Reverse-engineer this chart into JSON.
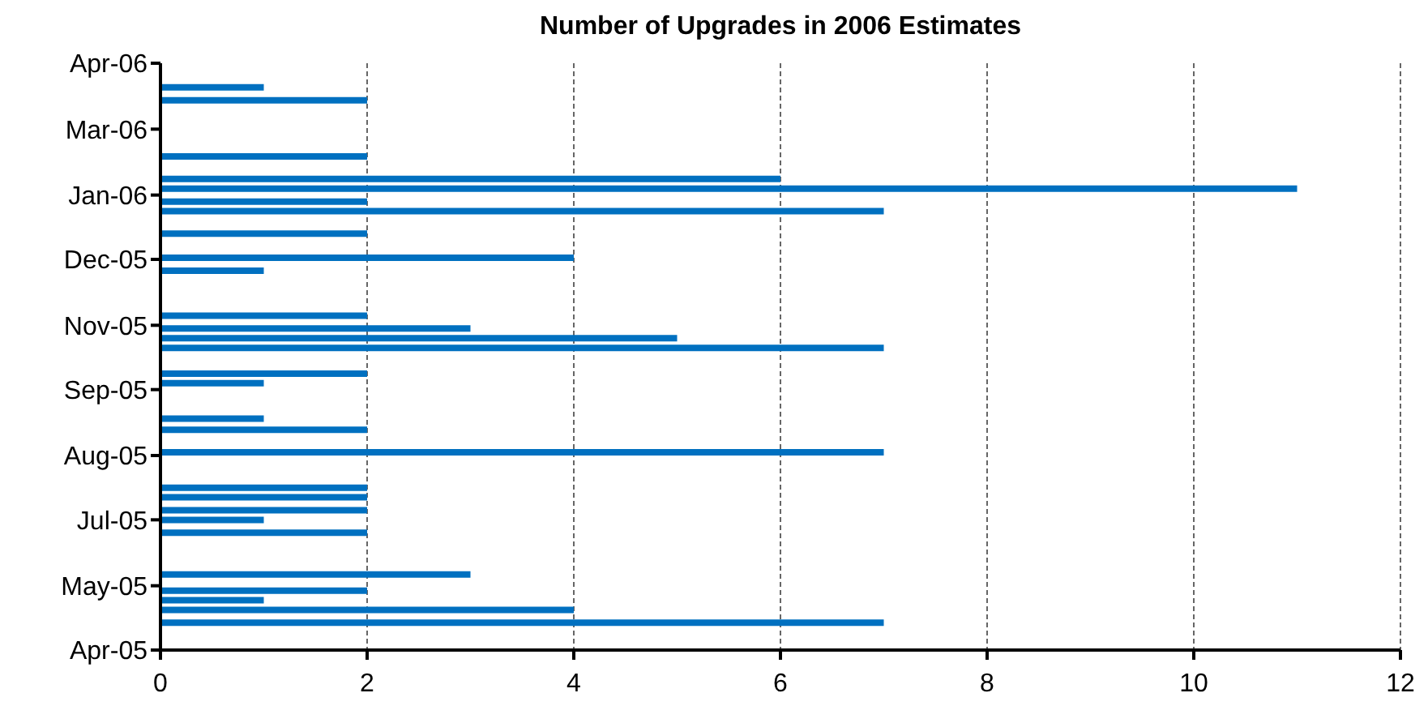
{
  "chart_data": {
    "type": "bar",
    "orientation": "horizontal",
    "title": "Number of Upgrades in 2006 Estimates",
    "x": [
      "2005-05-02",
      "2005-05-10",
      "2005-05-16",
      "2005-05-22",
      "2005-06-01",
      "2005-06-27",
      "2005-07-05",
      "2005-07-11",
      "2005-07-19",
      "2005-07-25",
      "2005-08-16",
      "2005-08-30",
      "2005-09-06",
      "2005-09-28",
      "2005-10-04",
      "2005-10-20",
      "2005-10-26",
      "2005-11-01",
      "2005-11-09",
      "2005-12-07",
      "2005-12-15",
      "2005-12-30",
      "2006-01-13",
      "2006-01-19",
      "2006-01-27",
      "2006-02-02",
      "2006-02-16",
      "2006-03-23",
      "2006-03-31"
    ],
    "values": [
      7,
      4,
      1,
      2,
      3,
      2,
      1,
      2,
      2,
      2,
      7,
      2,
      1,
      1,
      2,
      7,
      5,
      3,
      2,
      1,
      4,
      2,
      7,
      2,
      11,
      6,
      2,
      2,
      1
    ],
    "color": "#0070c0",
    "xlim": [
      0,
      12
    ],
    "xticks": [
      0,
      2,
      4,
      6,
      8,
      10,
      12
    ],
    "ylim": [
      "2005-04-15",
      "2006-04-15"
    ],
    "yticks": [
      {
        "value": "2005-04-15",
        "label": "Apr-05"
      },
      {
        "value": "2005-05-25",
        "label": "May-05"
      },
      {
        "value": "2005-07-05",
        "label": "Jul-05"
      },
      {
        "value": "2005-08-14",
        "label": "Aug-05"
      },
      {
        "value": "2005-09-24",
        "label": "Sep-05"
      },
      {
        "value": "2005-11-03",
        "label": "Nov-05"
      },
      {
        "value": "2005-12-14",
        "label": "Dec-05"
      },
      {
        "value": "2006-01-23",
        "label": "Jan-06"
      },
      {
        "value": "2006-03-05",
        "label": "Mar-06"
      },
      {
        "value": "2006-04-15",
        "label": "Apr-06"
      }
    ],
    "grid": "x",
    "legend": false
  }
}
